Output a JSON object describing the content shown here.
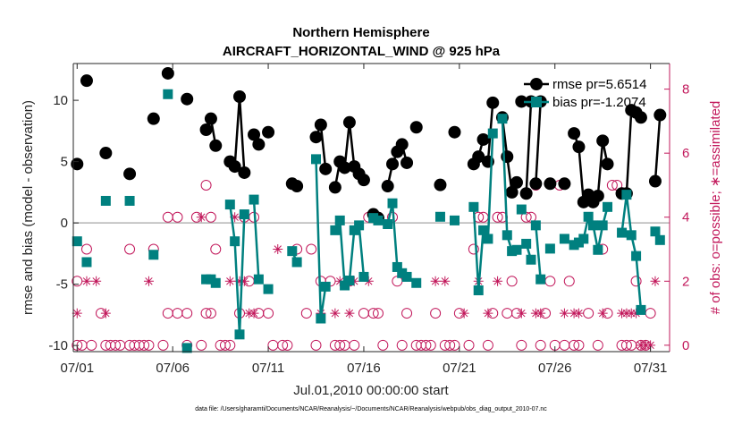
{
  "chart_data": {
    "type": "line",
    "title": "Northern Hemisphere",
    "subtitle": "AIRCRAFT_HORIZONTAL_WIND @ 925 hPa",
    "xlabel": "Jul.01,2010 00:00:00 start",
    "ylabel": "rmse and bias (model - observation)",
    "ylabel_right": "# of obs: o=possible; ∗=assimilated",
    "footnote": "data file: /Users/gharamti/Documents/NCAR/Reanalysis/~/Documents/NCAR/Reanalysis/webpub/obs_diag_output_2010-07.nc",
    "xlim": [
      0.8,
      32.0
    ],
    "ylim": [
      -10.5,
      13
    ],
    "ylim_right": [
      -0.2,
      8.8
    ],
    "xticks": [
      1,
      6,
      11,
      16,
      21,
      26,
      31
    ],
    "xtick_labels": [
      "07/01",
      "07/06",
      "07/11",
      "07/16",
      "07/21",
      "07/26",
      "07/31"
    ],
    "yticks": [
      -10,
      -5,
      0,
      5,
      10
    ],
    "ytick_labels": [
      "-10",
      "-5",
      "0",
      "5",
      "10"
    ],
    "yticks_right": [
      0,
      2,
      4,
      6,
      8
    ],
    "ytick_labels_right": [
      "0",
      "2",
      "4",
      "6",
      "8"
    ],
    "zero_line": 0,
    "legend_position": "top-right",
    "series": [
      {
        "name": "rmse",
        "legend_label": "rmse pr=5.6514",
        "color": "#000000",
        "marker": "circle",
        "segments": [
          [
            [
              1.0,
              4.8
            ]
          ],
          [
            [
              1.5,
              11.6
            ]
          ],
          [
            [
              2.5,
              5.7
            ]
          ],
          [
            [
              3.75,
              4.0
            ]
          ],
          [
            [
              5.0,
              8.5
            ]
          ],
          [
            [
              5.75,
              12.2
            ]
          ],
          [
            [
              6.75,
              10.1
            ]
          ],
          [
            [
              7.75,
              7.6
            ],
            [
              8.0,
              8.5
            ],
            [
              8.25,
              6.3
            ]
          ],
          [
            [
              9.0,
              5.0
            ],
            [
              9.25,
              4.6
            ],
            [
              9.5,
              10.3
            ],
            [
              9.75,
              4.1
            ]
          ],
          [
            [
              10.25,
              7.2
            ],
            [
              10.5,
              6.4
            ]
          ],
          [
            [
              11.0,
              7.4
            ]
          ],
          [
            [
              12.25,
              3.2
            ],
            [
              12.5,
              3.0
            ]
          ],
          [
            [
              13.5,
              7.0
            ],
            [
              13.75,
              8.0
            ],
            [
              14.0,
              4.4
            ]
          ],
          [
            [
              14.5,
              2.9
            ],
            [
              14.75,
              5.0
            ],
            [
              15.0,
              4.5
            ],
            [
              15.25,
              8.2
            ],
            [
              15.5,
              4.6
            ],
            [
              15.75,
              4.0
            ],
            [
              16.0,
              3.5
            ]
          ],
          [
            [
              16.5,
              0.7
            ],
            [
              16.75,
              0.4
            ]
          ],
          [
            [
              17.25,
              3.0
            ],
            [
              17.5,
              4.8
            ],
            [
              17.75,
              5.8
            ]
          ],
          [
            [
              18.0,
              6.4
            ],
            [
              18.25,
              4.9
            ]
          ],
          [
            [
              18.75,
              7.8
            ]
          ],
          [
            [
              20.0,
              3.1
            ]
          ],
          [
            [
              20.75,
              7.4
            ]
          ],
          [
            [
              21.75,
              4.8
            ],
            [
              22.0,
              5.4
            ],
            [
              22.25,
              6.8
            ]
          ],
          [
            [
              22.5,
              5.0
            ],
            [
              22.75,
              9.8
            ]
          ],
          [
            [
              23.25,
              8.6
            ],
            [
              23.5,
              5.4
            ],
            [
              23.75,
              2.5
            ],
            [
              24.0,
              3.3
            ]
          ],
          [
            [
              24.25,
              9.9
            ]
          ],
          [
            [
              24.5,
              2.4
            ],
            [
              24.75,
              9.9
            ]
          ],
          [
            [
              25.0,
              3.2
            ],
            [
              25.25,
              9.9
            ]
          ],
          [
            [
              25.75,
              3.2
            ]
          ],
          [
            [
              26.5,
              3.2
            ]
          ],
          [
            [
              27.0,
              7.3
            ],
            [
              27.25,
              6.2
            ],
            [
              27.5,
              1.7
            ],
            [
              27.75,
              2.3
            ],
            [
              28.0,
              1.7
            ],
            [
              28.25,
              2.2
            ],
            [
              28.5,
              6.7
            ],
            [
              28.75,
              4.8
            ]
          ],
          [
            [
              29.5,
              2.4
            ],
            [
              29.75,
              2.4
            ],
            [
              30.0,
              9.2
            ],
            [
              30.25,
              9.0
            ],
            [
              30.5,
              8.6
            ]
          ],
          [
            [
              31.25,
              3.4
            ],
            [
              31.5,
              8.8
            ]
          ]
        ]
      },
      {
        "name": "bias",
        "legend_label": "bias pr=-1.2074",
        "color": "#00807f",
        "marker": "square",
        "segments": [
          [
            [
              1.0,
              -1.5
            ]
          ],
          [
            [
              1.5,
              -3.2
            ]
          ],
          [
            [
              2.5,
              1.8
            ]
          ],
          [
            [
              3.75,
              1.8
            ]
          ],
          [
            [
              5.0,
              -2.6
            ]
          ],
          [
            [
              5.75,
              10.5
            ]
          ],
          [
            [
              6.75,
              -10.2
            ]
          ],
          [
            [
              7.75,
              -4.6
            ],
            [
              8.0,
              -4.6
            ],
            [
              8.25,
              -4.9
            ]
          ],
          [
            [
              9.0,
              1.5
            ],
            [
              9.25,
              -1.5
            ],
            [
              9.5,
              -9.1
            ],
            [
              9.75,
              0.7
            ]
          ],
          [
            [
              10.25,
              1.9
            ],
            [
              10.5,
              -4.6
            ]
          ],
          [
            [
              11.0,
              -5.4
            ]
          ],
          [
            [
              12.25,
              -2.3
            ],
            [
              12.5,
              -3.2
            ]
          ],
          [
            [
              13.5,
              5.2
            ],
            [
              13.75,
              -7.8
            ],
            [
              14.0,
              -5.2
            ]
          ],
          [
            [
              14.5,
              -0.6
            ],
            [
              14.75,
              0.2
            ],
            [
              15.0,
              -5.1
            ],
            [
              15.25,
              -4.7
            ],
            [
              15.5,
              -0.6
            ],
            [
              15.75,
              -0.2
            ],
            [
              16.0,
              -4.4
            ]
          ],
          [
            [
              16.5,
              0.4
            ],
            [
              16.75,
              0.2
            ]
          ],
          [
            [
              17.25,
              -0.1
            ],
            [
              17.5,
              1.6
            ],
            [
              17.75,
              -3.6
            ]
          ],
          [
            [
              18.0,
              -4.1
            ],
            [
              18.25,
              -4.4
            ]
          ],
          [
            [
              18.75,
              -4.9
            ]
          ],
          [
            [
              20.0,
              0.5
            ]
          ],
          [
            [
              20.75,
              0.2
            ]
          ],
          [
            [
              21.75,
              1.3
            ],
            [
              22.0,
              -5.5
            ],
            [
              22.25,
              -0.6
            ]
          ],
          [
            [
              22.5,
              -1.3
            ],
            [
              22.75,
              7.3
            ]
          ],
          [
            [
              23.25,
              8.5
            ],
            [
              23.5,
              -1.0
            ],
            [
              23.75,
              -2.3
            ],
            [
              24.0,
              -2.2
            ]
          ],
          [
            [
              24.25,
              1.1
            ]
          ],
          [
            [
              24.5,
              -1.7
            ],
            [
              24.75,
              -3.0
            ]
          ],
          [
            [
              25.0,
              -0.2
            ],
            [
              25.25,
              -4.6
            ]
          ],
          [
            [
              25.75,
              -2.1
            ]
          ],
          [
            [
              26.5,
              -1.3
            ]
          ],
          [
            [
              27.0,
              -1.8
            ],
            [
              27.25,
              -1.6
            ],
            [
              27.5,
              -1.3
            ],
            [
              27.75,
              0.5
            ],
            [
              28.0,
              -0.2
            ],
            [
              28.25,
              -2.2
            ],
            [
              28.5,
              -0.2
            ],
            [
              28.75,
              1.3
            ]
          ],
          [
            [
              29.5,
              -0.8
            ],
            [
              29.75,
              2.3
            ],
            [
              30.0,
              -1.0
            ],
            [
              30.25,
              -2.7
            ],
            [
              30.5,
              -7.1
            ]
          ],
          [
            [
              31.25,
              -0.7
            ],
            [
              31.5,
              -1.4
            ]
          ]
        ]
      }
    ],
    "obs_possible": [
      [
        1.0,
        2
      ],
      [
        1.0,
        0
      ],
      [
        1.25,
        0
      ],
      [
        1.5,
        3
      ],
      [
        1.75,
        0
      ],
      [
        2.25,
        1
      ],
      [
        2.5,
        0
      ],
      [
        2.75,
        0
      ],
      [
        3.0,
        0
      ],
      [
        3.25,
        0
      ],
      [
        3.75,
        3
      ],
      [
        3.75,
        0
      ],
      [
        4.0,
        0
      ],
      [
        4.25,
        0
      ],
      [
        4.5,
        0
      ],
      [
        4.75,
        0
      ],
      [
        5.0,
        3
      ],
      [
        5.5,
        0
      ],
      [
        5.75,
        4
      ],
      [
        5.75,
        1
      ],
      [
        6.25,
        4
      ],
      [
        6.25,
        1
      ],
      [
        6.75,
        1
      ],
      [
        6.75,
        0
      ],
      [
        7.25,
        4
      ],
      [
        7.5,
        0
      ],
      [
        7.75,
        5
      ],
      [
        7.75,
        1
      ],
      [
        8.0,
        4
      ],
      [
        8.0,
        1
      ],
      [
        8.25,
        3
      ],
      [
        8.5,
        0
      ],
      [
        8.75,
        0
      ],
      [
        9.0,
        0
      ],
      [
        9.5,
        1
      ],
      [
        9.75,
        4
      ],
      [
        10.0,
        2
      ],
      [
        10.25,
        4
      ],
      [
        10.5,
        1
      ],
      [
        11.0,
        1
      ],
      [
        11.25,
        0
      ],
      [
        11.75,
        0
      ],
      [
        12.0,
        0
      ],
      [
        12.5,
        3
      ],
      [
        13.0,
        1
      ],
      [
        13.25,
        3
      ],
      [
        13.5,
        0
      ],
      [
        13.75,
        2
      ],
      [
        14.25,
        2
      ],
      [
        14.5,
        0
      ],
      [
        14.75,
        0
      ],
      [
        15.0,
        0
      ],
      [
        15.25,
        2
      ],
      [
        15.5,
        0
      ],
      [
        16.0,
        1
      ],
      [
        16.25,
        4
      ],
      [
        16.5,
        1
      ],
      [
        16.75,
        1
      ],
      [
        17.0,
        0
      ],
      [
        17.25,
        5
      ],
      [
        17.5,
        4
      ],
      [
        17.75,
        2
      ],
      [
        18.0,
        0
      ],
      [
        18.25,
        1
      ],
      [
        18.75,
        0
      ],
      [
        19.0,
        0
      ],
      [
        19.25,
        0
      ],
      [
        19.5,
        0
      ],
      [
        19.75,
        1
      ],
      [
        20.25,
        0
      ],
      [
        20.5,
        0
      ],
      [
        20.75,
        0
      ],
      [
        21.0,
        1
      ],
      [
        21.5,
        0
      ],
      [
        21.75,
        3
      ],
      [
        22.0,
        4
      ],
      [
        22.25,
        4
      ],
      [
        22.5,
        0
      ],
      [
        22.75,
        1
      ],
      [
        23.0,
        4
      ],
      [
        23.25,
        4
      ],
      [
        23.5,
        1
      ],
      [
        23.75,
        2
      ],
      [
        24.0,
        1
      ],
      [
        24.25,
        0
      ],
      [
        24.5,
        4
      ],
      [
        24.75,
        4
      ],
      [
        25.0,
        5
      ],
      [
        25.25,
        0
      ],
      [
        25.5,
        1
      ],
      [
        25.75,
        2
      ],
      [
        26.0,
        0
      ],
      [
        26.25,
        5
      ],
      [
        26.5,
        0
      ],
      [
        26.75,
        2
      ],
      [
        27.0,
        0
      ],
      [
        27.25,
        0
      ],
      [
        27.75,
        1
      ],
      [
        28.25,
        0
      ],
      [
        28.5,
        3
      ],
      [
        28.75,
        1
      ],
      [
        29.0,
        5
      ],
      [
        29.25,
        5
      ],
      [
        29.5,
        0
      ],
      [
        29.75,
        0
      ],
      [
        30.0,
        0
      ],
      [
        30.25,
        2
      ],
      [
        30.5,
        0
      ],
      [
        30.75,
        0
      ],
      [
        31.0,
        1
      ]
    ],
    "obs_assimilated": [
      [
        1.0,
        1
      ],
      [
        1.5,
        2
      ],
      [
        2.0,
        2
      ],
      [
        2.5,
        1
      ],
      [
        4.75,
        2
      ],
      [
        7.5,
        4
      ],
      [
        9.0,
        2
      ],
      [
        9.25,
        4
      ],
      [
        9.5,
        2
      ],
      [
        9.75,
        2
      ],
      [
        10.0,
        1
      ],
      [
        10.25,
        1
      ],
      [
        11.5,
        3
      ],
      [
        13.75,
        1
      ],
      [
        14.5,
        1
      ],
      [
        14.75,
        2
      ],
      [
        15.25,
        1
      ],
      [
        15.5,
        2
      ],
      [
        16.25,
        2
      ],
      [
        19.75,
        2
      ],
      [
        20.25,
        2
      ],
      [
        21.25,
        1
      ],
      [
        22.0,
        2
      ],
      [
        22.5,
        1
      ],
      [
        23.0,
        2
      ],
      [
        24.25,
        1
      ],
      [
        25.0,
        1
      ],
      [
        25.25,
        1
      ],
      [
        26.5,
        1
      ],
      [
        27.0,
        1
      ],
      [
        27.25,
        1
      ],
      [
        28.25,
        3
      ],
      [
        28.5,
        1
      ],
      [
        29.5,
        1
      ],
      [
        29.75,
        1
      ],
      [
        30.0,
        1
      ],
      [
        30.25,
        1
      ],
      [
        30.5,
        0
      ],
      [
        30.75,
        0
      ],
      [
        31.0,
        0
      ],
      [
        31.25,
        2
      ]
    ]
  }
}
